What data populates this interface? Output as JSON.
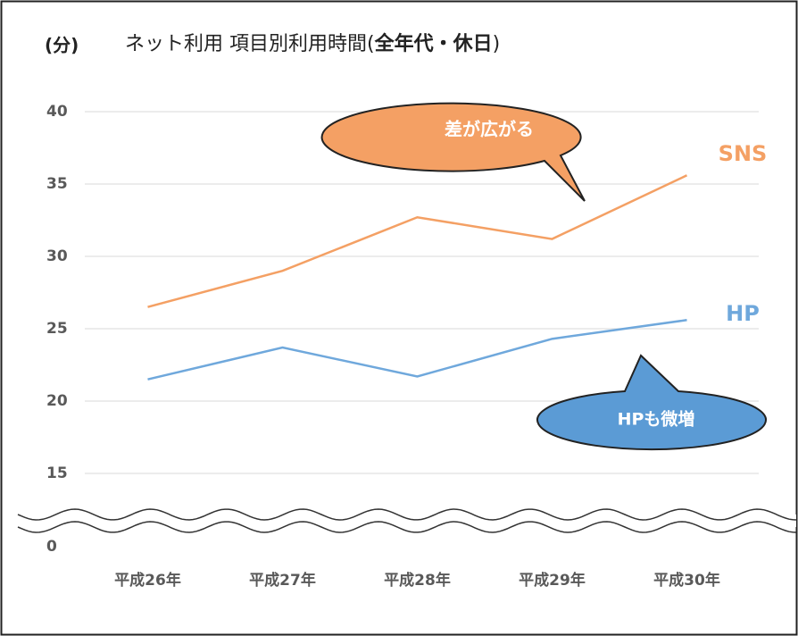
{
  "chart_data": {
    "type": "line",
    "title": [
      "ネット利用 項目別利用時間(",
      "全年代・休日",
      ")"
    ],
    "y_label": "(分)",
    "categories": [
      "平成26年",
      "平成27年",
      "平成28年",
      "平成29年",
      "平成30年"
    ],
    "series": [
      {
        "name": "SNS",
        "color": "#f4a064",
        "values": [
          26.5,
          29.0,
          32.7,
          31.2,
          35.6
        ]
      },
      {
        "name": "HP",
        "color": "#6fa8dc",
        "values": [
          21.5,
          23.7,
          21.7,
          24.3,
          25.6
        ]
      }
    ],
    "ylim": [
      0,
      40
    ],
    "axis_break": [
      0,
      15
    ],
    "yticks": [
      0,
      15,
      20,
      25,
      30,
      35,
      40
    ],
    "grid": true,
    "annotations": [
      {
        "text": "差が広がる",
        "color": "#f4a064"
      },
      {
        "text": "HPも微増",
        "color": "#5b9bd5"
      }
    ]
  }
}
